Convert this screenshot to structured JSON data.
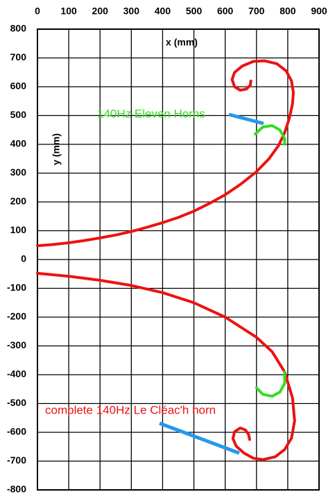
{
  "chart_data": {
    "type": "line",
    "xlabel": "x   (mm)",
    "ylabel": "y   (mm)",
    "xlim": [
      0,
      900
    ],
    "xticks": [
      0,
      100,
      200,
      300,
      400,
      500,
      600,
      700,
      800,
      900
    ],
    "ylim": [
      -800,
      800
    ],
    "yticks": [
      -800,
      -700,
      -600,
      -500,
      -400,
      -300,
      -200,
      -100,
      0,
      100,
      200,
      300,
      400,
      500,
      600,
      700,
      800
    ],
    "grid": true,
    "series": [
      {
        "color": "#ee1111",
        "x": [
          0,
          50,
          100,
          150,
          200,
          250,
          300,
          350,
          400,
          450,
          500,
          550,
          600,
          650,
          700,
          740,
          770,
          790,
          805,
          815,
          818,
          812,
          795,
          765,
          725,
          690,
          655,
          630,
          622,
          630,
          648,
          668,
          680,
          682
        ],
        "values": [
          48,
          52,
          58,
          66,
          75,
          85,
          97,
          112,
          128,
          146,
          168,
          195,
          225,
          262,
          305,
          350,
          395,
          440,
          490,
          540,
          580,
          620,
          655,
          680,
          690,
          688,
          672,
          650,
          625,
          600,
          588,
          592,
          605,
          620
        ]
      },
      {
        "color": "#ee1111",
        "x": [
          0,
          100,
          200,
          300,
          400,
          500,
          600,
          700,
          750,
          790,
          815,
          822,
          812,
          790,
          760,
          720,
          690,
          660,
          635,
          625,
          630,
          648,
          665,
          675,
          678
        ],
        "values": [
          -48,
          -58,
          -72,
          -90,
          -115,
          -150,
          -200,
          -270,
          -320,
          -390,
          -480,
          -560,
          -620,
          -660,
          -685,
          -695,
          -690,
          -672,
          -648,
          -622,
          -598,
          -585,
          -592,
          -608,
          -625
        ]
      },
      {
        "color": "#33dd22",
        "x": [
          696,
          720,
          750,
          775,
          790,
          790
        ],
        "values": [
          436,
          460,
          465,
          450,
          420,
          400
        ]
      },
      {
        "color": "#33dd22",
        "x": [
          790,
          790,
          775,
          750,
          720,
          700
        ],
        "values": [
          -390,
          -430,
          -460,
          -475,
          -468,
          -445
        ]
      }
    ],
    "annotations": [
      {
        "text": "140Hz Eleven Horns",
        "color": "#33dd22"
      },
      {
        "text": "complete 140Hz Le Cléac'h horn",
        "color": "#ee1111"
      }
    ]
  }
}
